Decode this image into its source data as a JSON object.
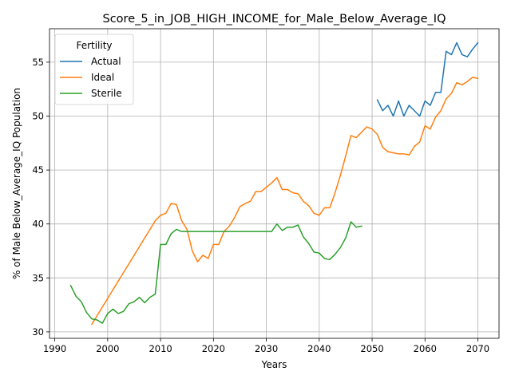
{
  "chart_data": {
    "type": "line",
    "title": "Score_5_in_JOB_HIGH_INCOME_for_Male_Below_Average_IQ",
    "xlabel": "Years",
    "ylabel": "% of Male Below_Average_IQ Population",
    "xlim": [
      1989,
      2074
    ],
    "ylim": [
      29.4,
      58.1
    ],
    "xticks": [
      1990,
      2000,
      2010,
      2020,
      2030,
      2040,
      2050,
      2060,
      2070
    ],
    "yticks": [
      30,
      35,
      40,
      45,
      50,
      55
    ],
    "grid": true,
    "legend": {
      "title": "Fertility",
      "position": "top-left"
    },
    "series": [
      {
        "name": "Actual",
        "color": "#1f77b4",
        "x": [
          2051,
          2052,
          2053,
          2054,
          2055,
          2056,
          2057,
          2058,
          2059,
          2060,
          2061,
          2062,
          2063,
          2064,
          2065,
          2066,
          2067,
          2068,
          2069,
          2070
        ],
        "y": [
          51.5,
          50.5,
          51.0,
          50.0,
          51.4,
          50.0,
          51.0,
          50.5,
          50.0,
          51.4,
          51.0,
          52.2,
          52.2,
          56.0,
          55.7,
          56.8,
          55.7,
          55.5,
          56.2,
          56.8
        ]
      },
      {
        "name": "Ideal",
        "color": "#ff7f0e",
        "x": [
          1997,
          1998,
          1999,
          2000,
          2001,
          2002,
          2003,
          2004,
          2005,
          2006,
          2007,
          2008,
          2009,
          2010,
          2011,
          2012,
          2013,
          2014,
          2015,
          2016,
          2017,
          2018,
          2019,
          2020,
          2021,
          2022,
          2023,
          2024,
          2025,
          2026,
          2027,
          2028,
          2029,
          2030,
          2031,
          2032,
          2033,
          2034,
          2035,
          2036,
          2037,
          2038,
          2039,
          2040,
          2041,
          2042,
          2043,
          2044,
          2045,
          2046,
          2047,
          2048,
          2049,
          2050,
          2051,
          2052,
          2053,
          2054,
          2055,
          2056,
          2057,
          2058,
          2059,
          2060,
          2061,
          2062,
          2063,
          2064,
          2065,
          2066,
          2067,
          2068,
          2069,
          2070
        ],
        "y": [
          30.7,
          31.5,
          32.3,
          33.1,
          33.9,
          34.7,
          35.5,
          36.3,
          37.1,
          37.9,
          38.7,
          39.5,
          40.3,
          40.8,
          41.0,
          41.9,
          41.8,
          40.3,
          39.5,
          37.5,
          36.5,
          37.1,
          36.8,
          38.1,
          38.1,
          39.3,
          39.8,
          40.6,
          41.6,
          41.9,
          42.1,
          43.0,
          43.0,
          43.4,
          43.8,
          44.3,
          43.2,
          43.2,
          42.9,
          42.8,
          42.1,
          41.7,
          41.0,
          40.8,
          41.5,
          41.5,
          42.9,
          44.5,
          46.3,
          48.2,
          48.0,
          48.5,
          49.0,
          48.8,
          48.3,
          47.1,
          46.7,
          46.6,
          46.5,
          46.5,
          46.4,
          47.2,
          47.6,
          49.1,
          48.8,
          49.9,
          50.5,
          51.6,
          52.1,
          53.1,
          52.9,
          53.2,
          53.6,
          53.5
        ]
      },
      {
        "name": "Sterile",
        "color": "#2ca02c",
        "x": [
          1993,
          1994,
          1995,
          1996,
          1997,
          1998,
          1999,
          2000,
          2001,
          2002,
          2003,
          2004,
          2005,
          2006,
          2007,
          2008,
          2009,
          2010,
          2011,
          2012,
          2013,
          2014,
          2015,
          2016,
          2017,
          2018,
          2019,
          2020,
          2021,
          2022,
          2023,
          2024,
          2025,
          2026,
          2027,
          2028,
          2029,
          2030,
          2031,
          2032,
          2033,
          2034,
          2035,
          2036,
          2037,
          2038,
          2039,
          2040,
          2041,
          2042,
          2043,
          2044,
          2045,
          2046,
          2047,
          2048
        ],
        "y": [
          34.3,
          33.3,
          32.8,
          31.8,
          31.2,
          31.1,
          30.8,
          31.7,
          32.1,
          31.7,
          31.9,
          32.6,
          32.8,
          33.2,
          32.7,
          33.2,
          33.5,
          38.1,
          38.1,
          39.1,
          39.5,
          39.3,
          39.3,
          39.3,
          39.3,
          39.3,
          39.3,
          39.3,
          39.3,
          39.3,
          39.3,
          39.3,
          39.3,
          39.3,
          39.3,
          39.3,
          39.3,
          39.3,
          39.3,
          40.0,
          39.4,
          39.7,
          39.7,
          39.9,
          38.8,
          38.2,
          37.4,
          37.3,
          36.8,
          36.7,
          37.2,
          37.8,
          38.7,
          40.2,
          39.7,
          39.8
        ]
      }
    ]
  }
}
